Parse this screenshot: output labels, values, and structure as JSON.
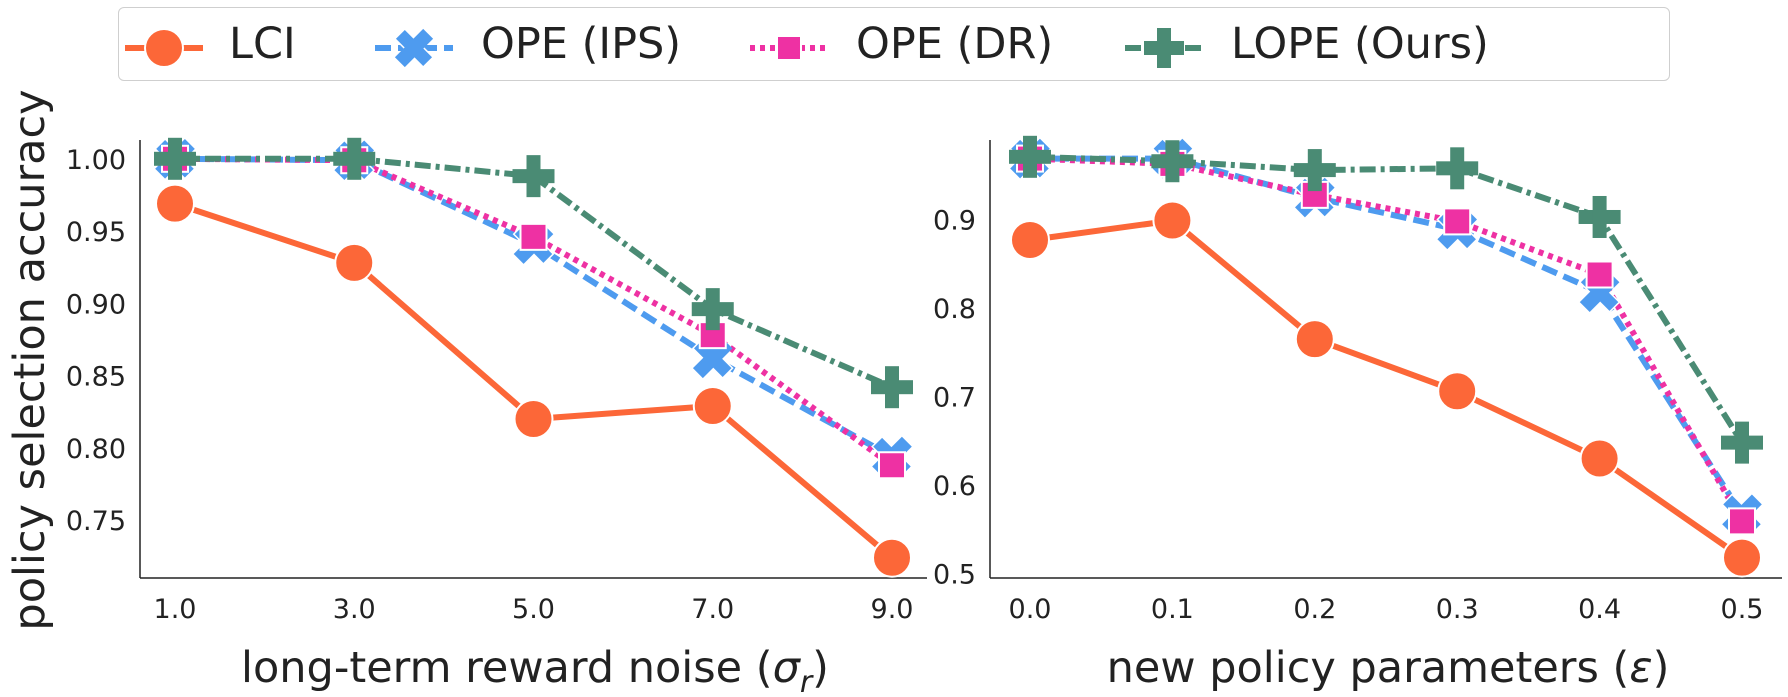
{
  "legend": {
    "items": [
      {
        "label": "LCI",
        "color": "#fc6738",
        "marker": "circle",
        "dash": "solid"
      },
      {
        "label": "OPE (IPS)",
        "color": "#4e9bef",
        "marker": "x",
        "dash": "dashed"
      },
      {
        "label": "OPE (DR)",
        "color": "#ee31a3",
        "marker": "square",
        "dash": "dotted"
      },
      {
        "label": "LOPE (Ours)",
        "color": "#4a8b74",
        "marker": "plus",
        "dash": "dashdot"
      }
    ]
  },
  "shared_ylabel": "policy selection accuracy",
  "chart_data": [
    {
      "type": "line",
      "xlabel_main": "long-term reward noise (",
      "xlabel_symbol": "σ",
      "xlabel_sub": "r",
      "xlabel_end": ")",
      "ylabel": "policy selection accuracy",
      "x": [
        1.0,
        3.0,
        5.0,
        7.0,
        9.0
      ],
      "xticks": [
        "1.0",
        "3.0",
        "5.0",
        "7.0",
        "9.0"
      ],
      "yticks": [
        "1.00",
        "0.95",
        "0.90",
        "0.85",
        "0.80",
        "0.75"
      ],
      "ylim": [
        0.71,
        1.013
      ],
      "series": [
        {
          "name": "LCI",
          "values": [
            0.969,
            0.928,
            0.82,
            0.829,
            0.724
          ]
        },
        {
          "name": "OPE (IPS)",
          "values": [
            1.0,
            0.999,
            0.941,
            0.862,
            0.794
          ]
        },
        {
          "name": "OPE (DR)",
          "values": [
            1.0,
            0.999,
            0.946,
            0.878,
            0.788
          ]
        },
        {
          "name": "LOPE (Ours)",
          "values": [
            1.0,
            1.0,
            0.988,
            0.896,
            0.842
          ]
        }
      ]
    },
    {
      "type": "line",
      "xlabel_main": "new policy parameters (",
      "xlabel_symbol": "ε",
      "xlabel_sub": "",
      "xlabel_end": ")",
      "x": [
        0.0,
        0.1,
        0.2,
        0.3,
        0.4,
        0.5
      ],
      "xticks": [
        "0.0",
        "0.1",
        "0.2",
        "0.3",
        "0.4",
        "0.5"
      ],
      "yticks": [
        "0.9",
        "0.8",
        "0.7",
        "0.6",
        "0.5"
      ],
      "ylim": [
        0.495,
        0.99
      ],
      "series": [
        {
          "name": "LCI",
          "values": [
            0.877,
            0.899,
            0.765,
            0.706,
            0.63,
            0.518
          ]
        },
        {
          "name": "OPE (IPS)",
          "values": [
            0.969,
            0.969,
            0.925,
            0.889,
            0.818,
            0.567
          ]
        },
        {
          "name": "OPE (DR)",
          "values": [
            0.969,
            0.963,
            0.928,
            0.898,
            0.838,
            0.559
          ]
        },
        {
          "name": "LOPE (Ours)",
          "values": [
            0.971,
            0.966,
            0.956,
            0.958,
            0.903,
            0.648
          ]
        }
      ]
    }
  ]
}
